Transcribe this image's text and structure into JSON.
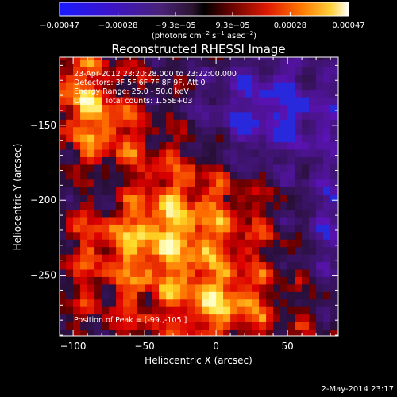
{
  "chart_data": {
    "type": "heatmap",
    "title": "Reconstructed RHESSI Image",
    "xlabel": "Heliocentric X (arcsec)",
    "ylabel": "Heliocentric Y (arcsec)",
    "xlim": [
      -109.5,
      85.5
    ],
    "ylim": [
      -290.5,
      -104.5
    ],
    "x_ticks": [
      -100,
      -50,
      0,
      50
    ],
    "y_ticks": [
      -150,
      -200,
      -250
    ],
    "x_tick_labels": [
      "−100",
      "−50",
      "0",
      "50"
    ],
    "y_tick_labels": [
      "−150",
      "−200",
      "−250"
    ],
    "colorbar": {
      "colormap": "hot-metal with blue-purple negatives",
      "range": [
        -0.00047,
        0.00047
      ],
      "tick_labels": [
        "−0.00047",
        "−0.00028",
        "−9.3e−05",
        "9.3e−05",
        "0.00028",
        "0.00047"
      ],
      "unit_label_parts": [
        "(photons cm",
        "−2",
        " s",
        "−1",
        " asec",
        "−2",
        ")"
      ]
    },
    "annotations": {
      "time_range": "23-Apr-2012 23:20:28.000 to 23:22:00.000",
      "detectors": "Detectors: 3F 5F 6F 7F 8F 9F, Att 0",
      "energy_range": "Energy Range: 25.0 - 50.0 keV",
      "clean": "Clean    Total counts: 1.55E+03",
      "peak": "Position of Peak = [-99.,-105.]"
    },
    "footer_date": "2-May-2014 23:17"
  }
}
